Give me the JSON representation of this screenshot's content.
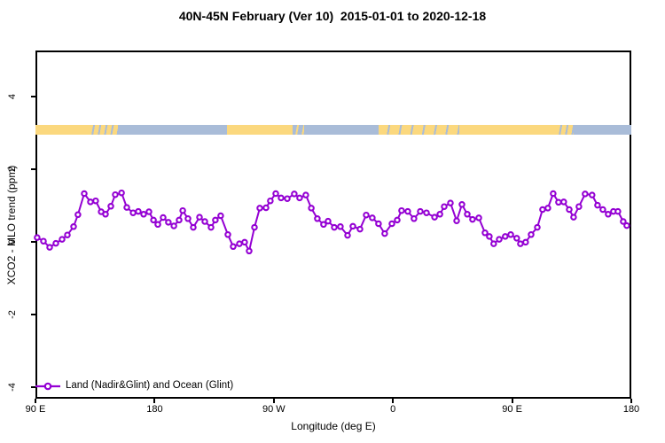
{
  "title": "40N-45N February (Ver 10)  2015-01-01 to 2020-12-18",
  "legend": {
    "label": "Land (Nadir&Glint) and Ocean (Glint)"
  },
  "colors": {
    "series": "#9400D3",
    "land": "#FBD87E",
    "ocean": "#A9BCD8",
    "axis": "#000000"
  },
  "chart_data": {
    "type": "line",
    "title": "40N-45N February (Ver 10)  2015-01-01 to 2020-12-18",
    "xlabel": "Longitude (deg E)",
    "ylabel": "XCO2 - MLO trend (ppm)",
    "x_axis_span_deg": 450,
    "x_ticks": [
      {
        "t": 0,
        "label": "90 E"
      },
      {
        "t": 90,
        "label": "180"
      },
      {
        "t": 180,
        "label": "90 W"
      },
      {
        "t": 270,
        "label": "0"
      },
      {
        "t": 360,
        "label": "90 E"
      },
      {
        "t": 450,
        "label": "180"
      }
    ],
    "y_ticks": [
      {
        "v": 4,
        "label": "4"
      },
      {
        "v": 2,
        "label": "2"
      },
      {
        "v": 0,
        "label": "0"
      },
      {
        "v": -2,
        "label": "-2"
      },
      {
        "v": -4,
        "label": "-4"
      }
    ],
    "ylim": [
      -4.3,
      5.3
    ],
    "grid": false,
    "legend_position": "bottom-left-inside",
    "map_band": {
      "description": "land/ocean strip for 40N-45N drawn at ~3.1 ppm",
      "center_value": 3.1,
      "segments": [
        {
          "from": 0.0,
          "to": 0.089,
          "type": "land"
        },
        {
          "from": 0.089,
          "to": 0.138,
          "type": "mixed_land"
        },
        {
          "from": 0.138,
          "to": 0.321,
          "type": "ocean"
        },
        {
          "from": 0.321,
          "to": 0.431,
          "type": "land"
        },
        {
          "from": 0.431,
          "to": 0.451,
          "type": "mixed_ocean"
        },
        {
          "from": 0.451,
          "to": 0.576,
          "type": "ocean"
        },
        {
          "from": 0.576,
          "to": 0.711,
          "type": "land_lakes"
        },
        {
          "from": 0.711,
          "to": 0.873,
          "type": "land"
        },
        {
          "from": 0.873,
          "to": 0.903,
          "type": "mixed_land"
        },
        {
          "from": 0.903,
          "to": 1.0,
          "type": "ocean"
        }
      ]
    },
    "series": [
      {
        "name": "Land (Nadir&Glint) and Ocean (Glint)",
        "color": "#9400D3",
        "marker": "open-circle",
        "points": [
          [
            1.3,
            0.12
          ],
          [
            6,
            0.02
          ],
          [
            10.7,
            -0.15
          ],
          [
            15.4,
            -0.04
          ],
          [
            20.1,
            0.07
          ],
          [
            24.1,
            0.19
          ],
          [
            28.8,
            0.42
          ],
          [
            32.1,
            0.75
          ],
          [
            36.8,
            1.33
          ],
          [
            41.5,
            1.1
          ],
          [
            45.5,
            1.13
          ],
          [
            49.6,
            0.83
          ],
          [
            52.9,
            0.76
          ],
          [
            56.9,
            0.98
          ],
          [
            60.3,
            1.3
          ],
          [
            65,
            1.35
          ],
          [
            69,
            0.95
          ],
          [
            73.7,
            0.8
          ],
          [
            77.7,
            0.84
          ],
          [
            81.7,
            0.76
          ],
          [
            85.7,
            0.83
          ],
          [
            89.1,
            0.6
          ],
          [
            92.4,
            0.48
          ],
          [
            96.4,
            0.67
          ],
          [
            100.4,
            0.54
          ],
          [
            104.5,
            0.44
          ],
          [
            108.5,
            0.6
          ],
          [
            111.2,
            0.86
          ],
          [
            115.2,
            0.64
          ],
          [
            119.2,
            0.4
          ],
          [
            123.9,
            0.68
          ],
          [
            127.9,
            0.56
          ],
          [
            132.6,
            0.4
          ],
          [
            135.9,
            0.6
          ],
          [
            139.9,
            0.72
          ],
          [
            145.3,
            0.2
          ],
          [
            149.3,
            -0.13
          ],
          [
            154,
            -0.05
          ],
          [
            158,
            -0.01
          ],
          [
            161.4,
            -0.25
          ],
          [
            165.4,
            0.4
          ],
          [
            169.4,
            0.93
          ],
          [
            174.1,
            0.94
          ],
          [
            177.4,
            1.13
          ],
          [
            181.5,
            1.33
          ],
          [
            185.5,
            1.21
          ],
          [
            190.2,
            1.19
          ],
          [
            195.5,
            1.32
          ],
          [
            199.5,
            1.21
          ],
          [
            204.2,
            1.29
          ],
          [
            208.3,
            0.93
          ],
          [
            212.9,
            0.64
          ],
          [
            217.6,
            0.48
          ],
          [
            221,
            0.57
          ],
          [
            225.7,
            0.4
          ],
          [
            230.3,
            0.42
          ],
          [
            235.7,
            0.18
          ],
          [
            239.7,
            0.43
          ],
          [
            245.1,
            0.35
          ],
          [
            249.8,
            0.74
          ],
          [
            254.4,
            0.66
          ],
          [
            259.1,
            0.5
          ],
          [
            263.8,
            0.23
          ],
          [
            269.2,
            0.5
          ],
          [
            273.2,
            0.6
          ],
          [
            276.5,
            0.86
          ],
          [
            281.2,
            0.84
          ],
          [
            285.9,
            0.64
          ],
          [
            290.6,
            0.84
          ],
          [
            295.3,
            0.8
          ],
          [
            301.4,
            0.68
          ],
          [
            305.4,
            0.76
          ],
          [
            308.7,
            0.97
          ],
          [
            313.4,
            1.07
          ],
          [
            318.1,
            0.58
          ],
          [
            322.1,
            1.03
          ],
          [
            326.1,
            0.76
          ],
          [
            330.1,
            0.62
          ],
          [
            334.8,
            0.66
          ],
          [
            339.5,
            0.25
          ],
          [
            342.8,
            0.15
          ],
          [
            346.1,
            -0.05
          ],
          [
            350.2,
            0.07
          ],
          [
            354.8,
            0.15
          ],
          [
            358.9,
            0.2
          ],
          [
            363.5,
            0.1
          ],
          [
            366.2,
            -0.05
          ],
          [
            370.2,
            -0.01
          ],
          [
            374.3,
            0.2
          ],
          [
            379,
            0.4
          ],
          [
            383,
            0.89
          ],
          [
            387,
            0.93
          ],
          [
            391,
            1.33
          ],
          [
            395,
            1.09
          ],
          [
            399,
            1.1
          ],
          [
            403.1,
            0.89
          ],
          [
            406.4,
            0.68
          ],
          [
            410.4,
            0.97
          ],
          [
            415.1,
            1.32
          ],
          [
            420.4,
            1.29
          ],
          [
            424.5,
            1.01
          ],
          [
            428.5,
            0.89
          ],
          [
            432.5,
            0.76
          ],
          [
            436.5,
            0.84
          ],
          [
            439.9,
            0.84
          ],
          [
            443.9,
            0.56
          ],
          [
            446.6,
            0.45
          ]
        ]
      }
    ]
  }
}
